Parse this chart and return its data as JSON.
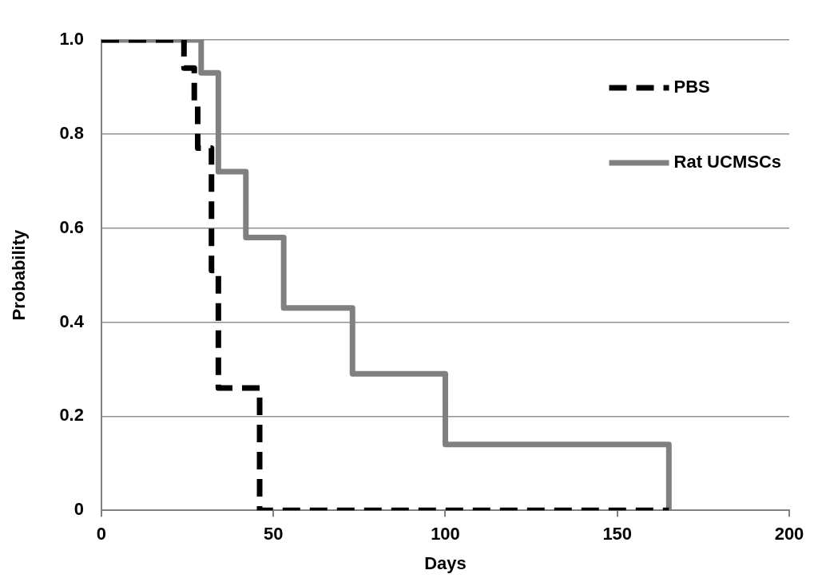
{
  "chart_data": {
    "type": "step",
    "xlabel": "Days",
    "ylabel": "Probability",
    "xlim": [
      0,
      200
    ],
    "xticks": [
      0,
      50,
      100,
      150,
      200
    ],
    "ylim": [
      0,
      1
    ],
    "yticks": [
      0,
      0.2,
      0.4,
      0.6,
      0.8,
      {
        "value": 1,
        "label": "1.0"
      }
    ],
    "grid": "y",
    "legend": "top right",
    "marker": "none",
    "series": [
      {
        "name": "PBS",
        "color": "#000000",
        "line_style": "dashed",
        "x": [
          0,
          24,
          27,
          28,
          32,
          34,
          46,
          165
        ],
        "values": [
          1,
          0.94,
          0.86,
          0.77,
          0.51,
          0.26,
          0,
          0
        ]
      },
      {
        "name": "Rat UCMSCs",
        "color": "#808080",
        "line_style": "solid",
        "x": [
          0,
          29,
          34,
          42,
          53,
          73,
          100,
          165
        ],
        "values": [
          1,
          0.93,
          0.72,
          0.58,
          0.43,
          0.29,
          0.14,
          0
        ]
      }
    ]
  }
}
